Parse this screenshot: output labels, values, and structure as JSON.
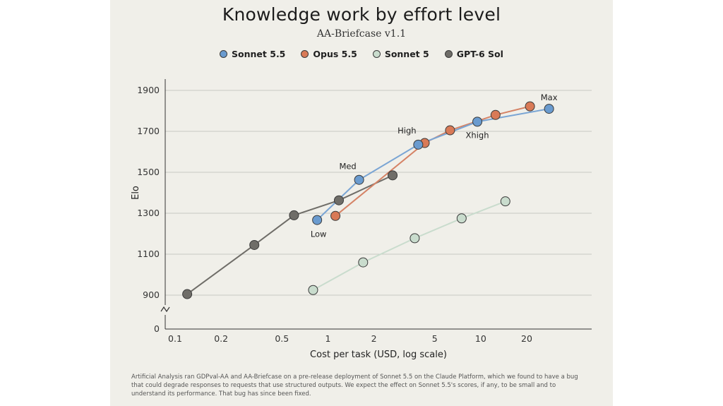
{
  "footnote": "Artificial Analysis ran GDPval-AA and AA-Briefcase on a pre-release deployment of Sonnet 5.5 on the Claude Platform, which we found to have a bug that could degrade responses to requests that use structured outputs. We expect the effect on Sonnet 5.5's scores, if any, to be small and to understand its performance. That bug has since been fixed.",
  "chart_data": {
    "type": "line",
    "title": "Knowledge work by effort level",
    "subtitle": "AA-Briefcase v1.1",
    "xlabel": "Cost per task (USD, log scale)",
    "ylabel": "Elo",
    "x_scale": "log",
    "xlim": [
      0.09,
      45
    ],
    "ylim": [
      800,
      1950
    ],
    "y_axis_break": true,
    "x_ticks": [
      {
        "value": 0.1,
        "label": "0.1"
      },
      {
        "value": 0.2,
        "label": "0.2"
      },
      {
        "value": 0.5,
        "label": "0.5"
      },
      {
        "value": 1,
        "label": "1"
      },
      {
        "value": 2,
        "label": "2"
      },
      {
        "value": 5,
        "label": "5"
      },
      {
        "value": 10,
        "label": "10"
      },
      {
        "value": 20,
        "label": "20"
      }
    ],
    "y_ticks": [
      {
        "value": 900,
        "label": "900"
      },
      {
        "value": 1100,
        "label": "1100"
      },
      {
        "value": 1300,
        "label": "1300"
      },
      {
        "value": 1500,
        "label": "1500"
      },
      {
        "value": 1700,
        "label": "1700"
      },
      {
        "value": 1900,
        "label": "1900"
      }
    ],
    "y_zero_label": "0",
    "grid": "horizontal",
    "legend_position": "top-center",
    "series": [
      {
        "name": "Sonnet 5.5",
        "color": "#6a9bcf",
        "points": [
          {
            "x": 0.85,
            "y": 1267,
            "label": "Low"
          },
          {
            "x": 1.6,
            "y": 1463,
            "label": "Med"
          },
          {
            "x": 3.9,
            "y": 1635,
            "label": "High"
          },
          {
            "x": 9.5,
            "y": 1747,
            "label": "Xhigh"
          },
          {
            "x": 28,
            "y": 1810,
            "label": "Max"
          }
        ]
      },
      {
        "name": "Opus 5.5",
        "color": "#d97a57",
        "points": [
          {
            "x": 1.12,
            "y": 1287
          },
          {
            "x": 4.3,
            "y": 1643
          },
          {
            "x": 6.3,
            "y": 1705
          },
          {
            "x": 12.5,
            "y": 1780
          },
          {
            "x": 21,
            "y": 1822
          }
        ]
      },
      {
        "name": "Sonnet 5",
        "color": "#c9dccd",
        "points": [
          {
            "x": 0.8,
            "y": 925
          },
          {
            "x": 1.7,
            "y": 1060
          },
          {
            "x": 3.7,
            "y": 1178
          },
          {
            "x": 7.5,
            "y": 1275
          },
          {
            "x": 14.5,
            "y": 1358
          }
        ]
      },
      {
        "name": "GPT-6 Sol",
        "color": "#6f6d68",
        "points": [
          {
            "x": 0.12,
            "y": 905
          },
          {
            "x": 0.33,
            "y": 1145
          },
          {
            "x": 0.6,
            "y": 1290
          },
          {
            "x": 1.18,
            "y": 1363
          },
          {
            "x": 2.65,
            "y": 1485
          }
        ]
      }
    ]
  }
}
